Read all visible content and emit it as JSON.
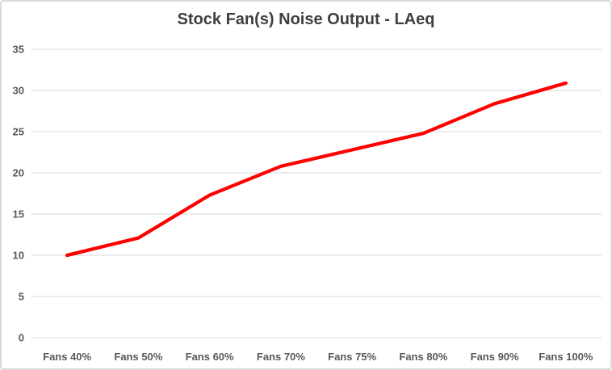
{
  "chart_data": {
    "type": "line",
    "title": "Stock Fan(s) Noise Output - LAeq",
    "categories": [
      "Fans 40%",
      "Fans 50%",
      "Fans 60%",
      "Fans 70%",
      "Fans 75%",
      "Fans 80%",
      "Fans 90%",
      "Fans 100%"
    ],
    "series": [
      {
        "name": "LAeq",
        "values": [
          10.0,
          12.1,
          17.3,
          20.8,
          22.8,
          24.8,
          28.4,
          30.9
        ]
      }
    ],
    "xlabel": "",
    "ylabel": "",
    "ylim": [
      0,
      35
    ],
    "yticks": [
      0,
      5,
      10,
      15,
      20,
      25,
      30,
      35
    ],
    "grid": true,
    "legend": "none"
  },
  "colors": {
    "line": "#ff0000",
    "gridline": "#d9d9d9",
    "title_text": "#404040",
    "axis_text": "#595959",
    "chart_border": "#d9d9d9",
    "background": "#ffffff"
  }
}
